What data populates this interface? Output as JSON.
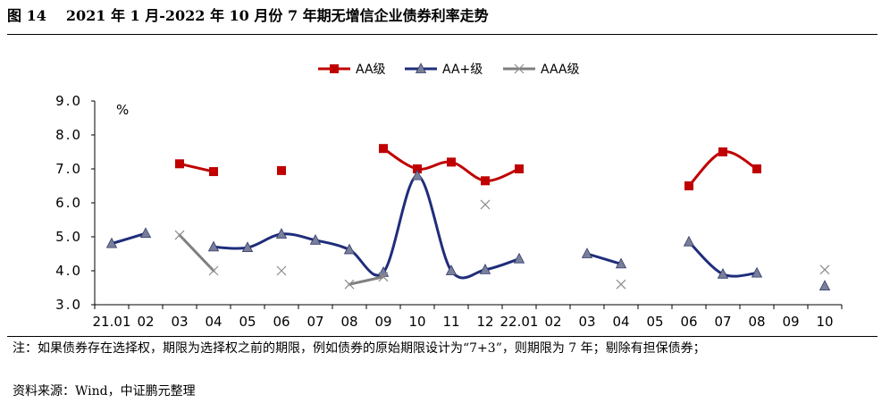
{
  "figure": {
    "number": "图 14",
    "title": "2021 年 1 月-2022 年 10 月份 7 年期无增信企业债券利率走势"
  },
  "chart_data": {
    "type": "line",
    "unit_label": "%",
    "ylim": [
      3.0,
      9.0
    ],
    "yticks": [
      "3.0",
      "4.0",
      "5.0",
      "6.0",
      "7.0",
      "8.0",
      "9.0"
    ],
    "categories": [
      "21.01",
      "02",
      "03",
      "04",
      "05",
      "06",
      "07",
      "08",
      "09",
      "10",
      "11",
      "12",
      "22.01",
      "02",
      "03",
      "04",
      "05",
      "06",
      "07",
      "08",
      "09",
      "10"
    ],
    "series": [
      {
        "name": "AA级",
        "color": "#c00000",
        "marker": "square",
        "values": [
          null,
          null,
          7.15,
          6.92,
          null,
          6.95,
          null,
          null,
          7.6,
          7.0,
          7.2,
          6.65,
          7.0,
          null,
          null,
          null,
          null,
          6.5,
          7.5,
          7.0,
          null,
          null
        ]
      },
      {
        "name": "AA+级",
        "color": "#1f2d7a",
        "marker": "triangle",
        "values": [
          4.8,
          5.1,
          null,
          4.7,
          4.68,
          5.08,
          4.9,
          4.62,
          3.95,
          6.8,
          4.0,
          4.03,
          4.35,
          null,
          4.5,
          4.2,
          null,
          4.85,
          3.9,
          3.93,
          null,
          3.55
        ]
      },
      {
        "name": "AAA级",
        "color": "#7f7f7f",
        "marker": "x",
        "values": [
          null,
          null,
          5.05,
          4.0,
          null,
          4.0,
          null,
          3.6,
          3.82,
          null,
          null,
          5.95,
          null,
          null,
          null,
          3.6,
          null,
          null,
          null,
          null,
          null,
          4.03
        ]
      }
    ]
  },
  "notes": {
    "note": "注：如果债券存在选择权，期限为选择权之前的期限，例如债券的原始期限设计为“7+3”，则期限为 7 年；剔除有担保债券；",
    "source": "资料来源：Wind，中证鹏元整理"
  }
}
